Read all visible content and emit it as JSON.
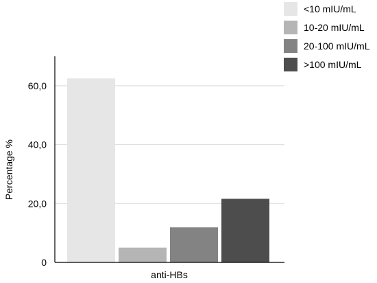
{
  "chart_data": {
    "type": "bar",
    "title": "",
    "xlabel": "anti-HBs",
    "ylabel": "Percentage %",
    "categories": [
      "anti-HBs"
    ],
    "series": [
      {
        "name": "<10 mIU/mL",
        "values": [
          62.5
        ],
        "color": "#e6e6e6"
      },
      {
        "name": "10-20 mIU/mL",
        "values": [
          5.0
        ],
        "color": "#b5b5b5"
      },
      {
        "name": "20-100 mIU/mL",
        "values": [
          11.9
        ],
        "color": "#838383"
      },
      {
        "name": ">100 mIU/mL",
        "values": [
          21.6
        ],
        "color": "#4d4d4d"
      }
    ],
    "ylim": [
      0,
      70
    ],
    "yticks": [
      0,
      20,
      40,
      60
    ],
    "ytick_labels": [
      "0",
      "20,0",
      "40,0",
      "60,0"
    ],
    "grid": true,
    "legend_position": "top-right"
  }
}
